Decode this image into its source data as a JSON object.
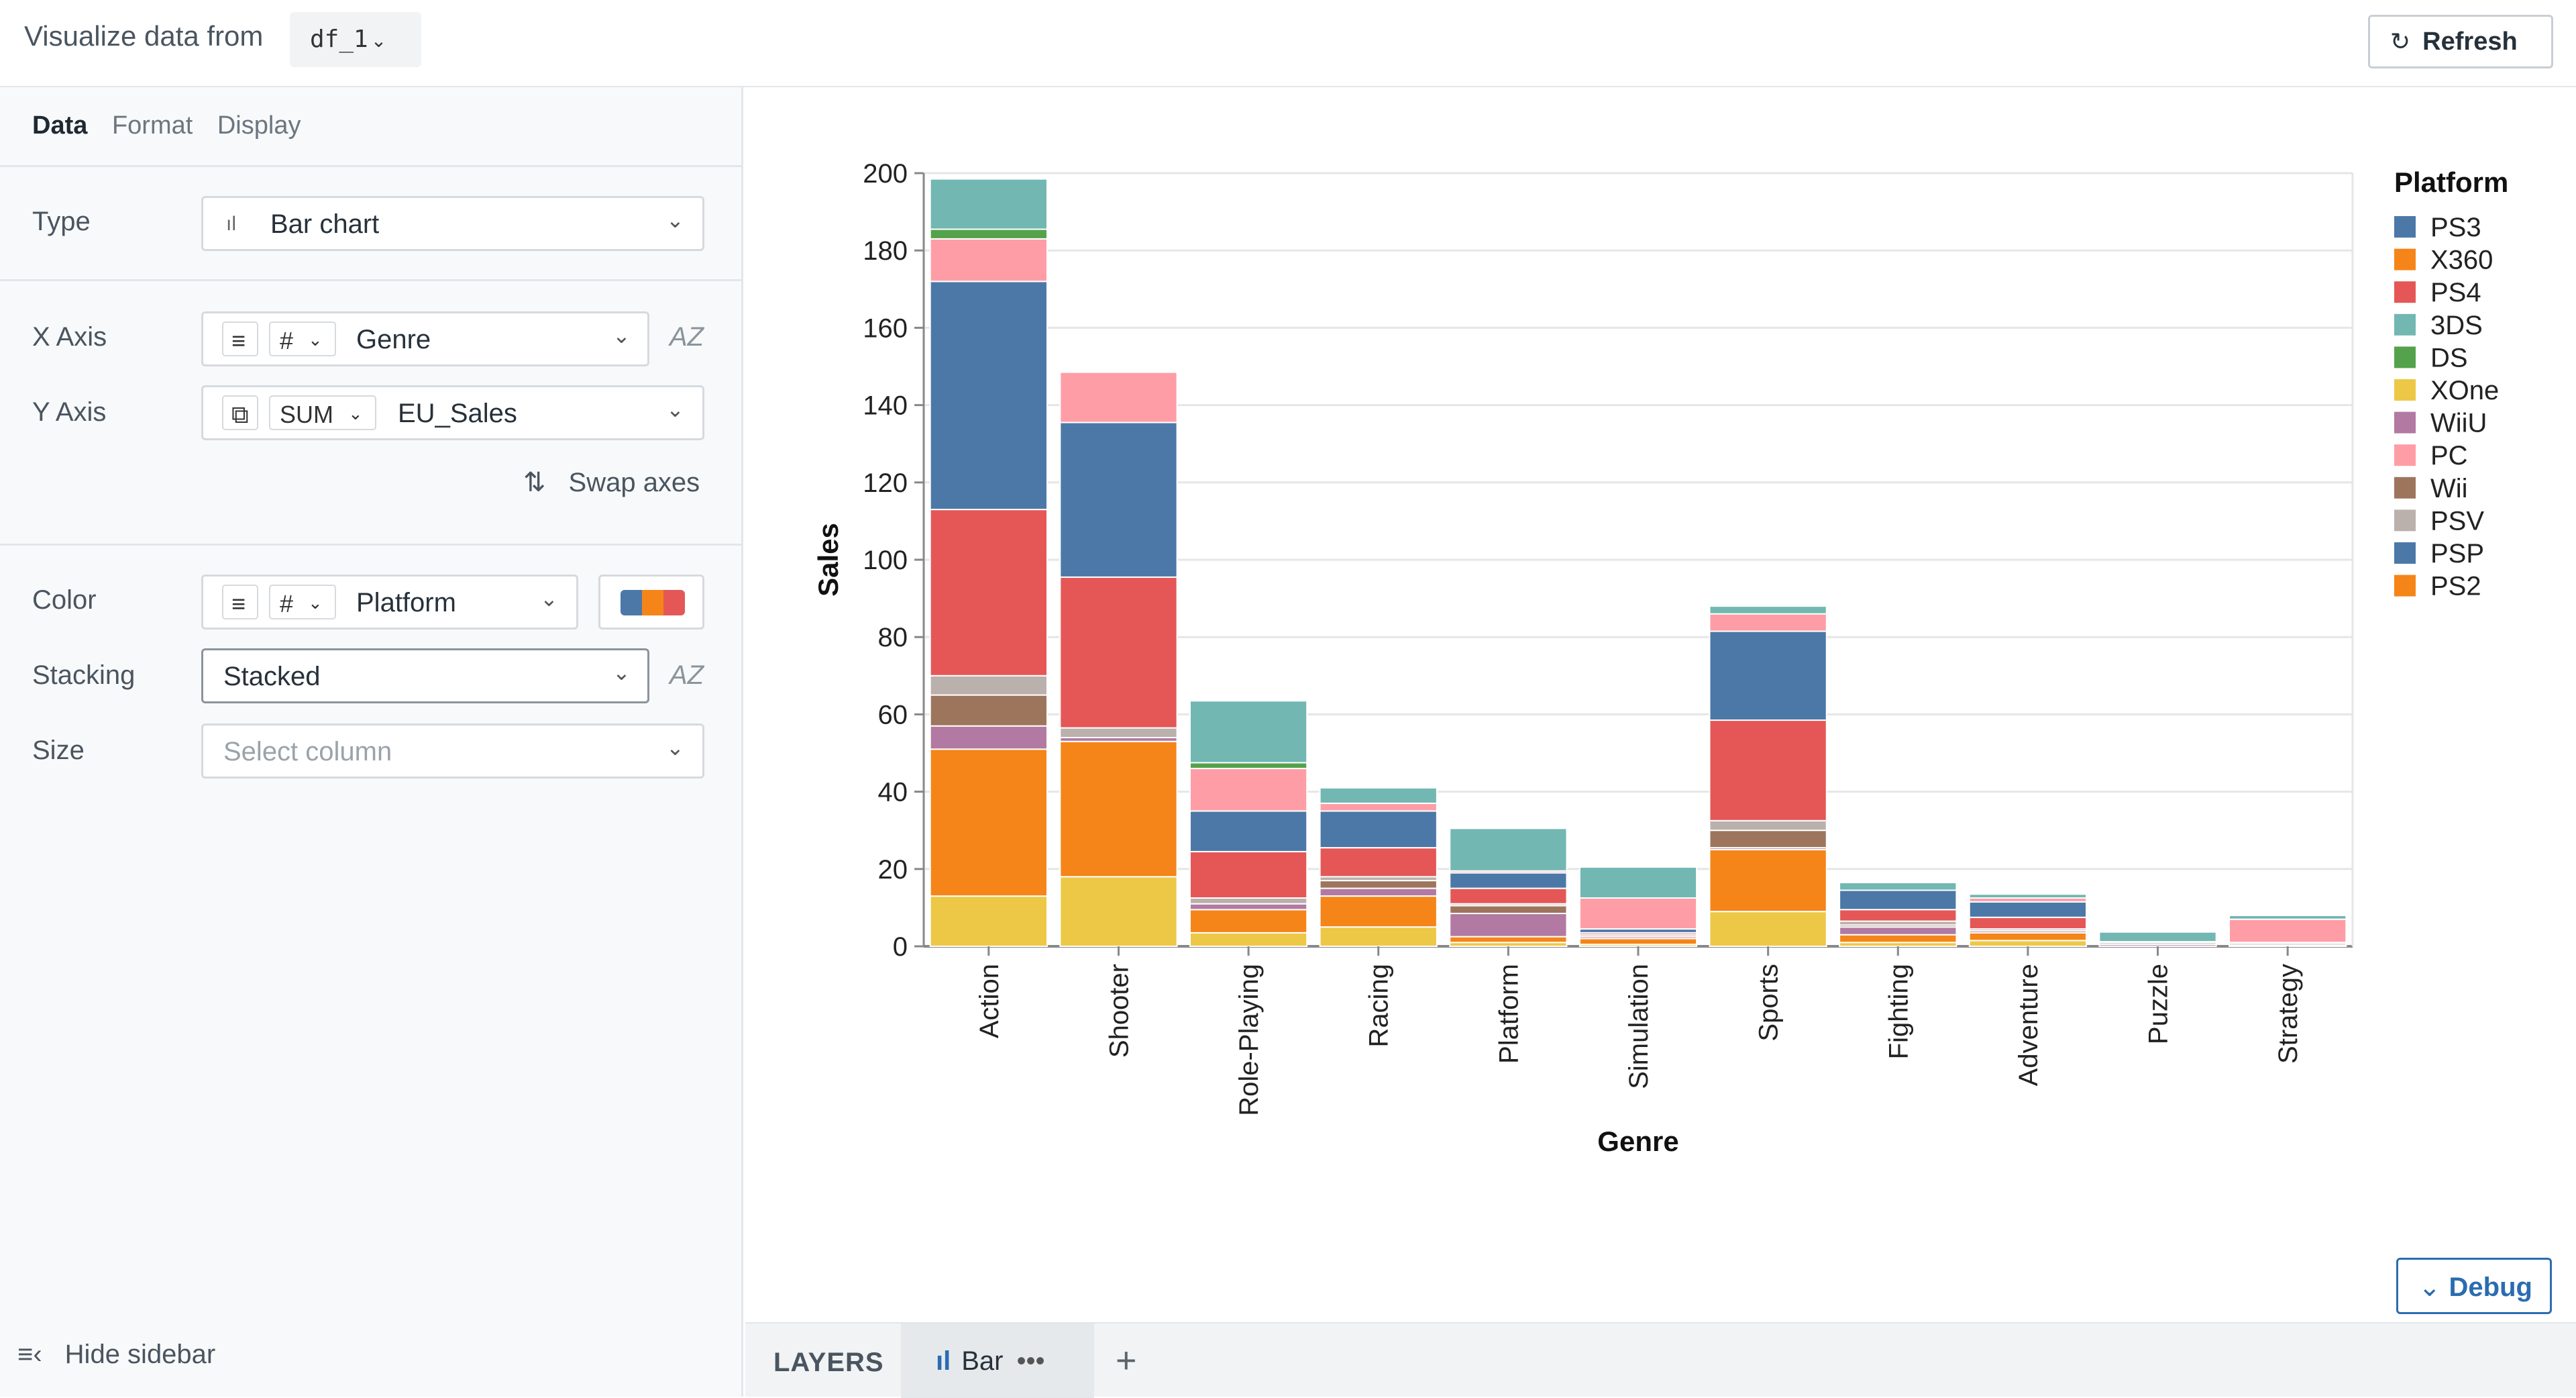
{
  "header": {
    "title": "Visualize data from",
    "dataframe": "df_1",
    "refresh_label": "Refresh"
  },
  "sidebar": {
    "tabs": [
      "Data",
      "Format",
      "Display"
    ],
    "type_label": "Type",
    "type_value": "Bar chart",
    "x_axis_label": "X Axis",
    "x_axis_kind": "#",
    "x_axis_value": "Genre",
    "y_axis_label": "Y Axis",
    "y_axis_agg": "SUM",
    "y_axis_value": "EU_Sales",
    "swap_label": "Swap axes",
    "color_label": "Color",
    "color_kind": "#",
    "color_value": "Platform",
    "stacking_label": "Stacking",
    "stacking_value": "Stacked",
    "size_label": "Size",
    "size_placeholder": "Select column",
    "hide_label": "Hide sidebar"
  },
  "debug_label": "Debug",
  "layers": {
    "label": "LAYERS",
    "tab_label": "Bar"
  },
  "chart_data": {
    "type": "bar",
    "stacked": true,
    "xlabel": "Genre",
    "ylabel": "Sales",
    "ylim": [
      0,
      200
    ],
    "yticks": [
      0,
      20,
      40,
      60,
      80,
      100,
      120,
      140,
      160,
      180,
      200
    ],
    "legend_title": "Platform",
    "legend_position": "right",
    "grid": true,
    "categories": [
      "Action",
      "Shooter",
      "Role-Playing",
      "Racing",
      "Platform",
      "Simulation",
      "Sports",
      "Fighting",
      "Adventure",
      "Puzzle",
      "Strategy"
    ],
    "series": [
      {
        "name": "XOne",
        "color": "#ECC846",
        "values": [
          13,
          18,
          3.5,
          5,
          1,
          0.5,
          9,
          1,
          1.5,
          0,
          0
        ]
      },
      {
        "name": "X360",
        "color": "#F58518",
        "values": [
          38,
          35,
          6,
          8,
          1.5,
          1.5,
          16,
          2,
          2,
          0,
          0
        ]
      },
      {
        "name": "WiiU",
        "color": "#B279A2",
        "values": [
          6,
          1,
          1.5,
          2,
          6,
          0.5,
          0.5,
          2,
          0.5,
          0.5,
          0.3
        ]
      },
      {
        "name": "Wii",
        "color": "#9D755D",
        "values": [
          8,
          0,
          0,
          2,
          2,
          0,
          4.5,
          0.5,
          0,
          0,
          0
        ]
      },
      {
        "name": "PSV",
        "color": "#BAB0AC",
        "values": [
          5,
          2.5,
          1.5,
          1,
          0.5,
          0.5,
          2.5,
          1,
          0.5,
          0.5,
          0.5
        ]
      },
      {
        "name": "PS4",
        "color": "#E45756",
        "values": [
          43,
          39,
          12,
          7.5,
          4,
          0.5,
          26,
          3,
          3,
          0.2,
          0.2
        ]
      },
      {
        "name": "PS3",
        "color": "#4C78A8",
        "values": [
          59,
          40,
          10.5,
          9.5,
          4,
          1,
          23,
          5,
          4,
          0,
          0
        ]
      },
      {
        "name": "PC",
        "color": "#FF9DA6",
        "values": [
          11,
          13,
          11,
          2,
          0.5,
          8,
          4.5,
          0,
          1,
          0,
          6
        ]
      },
      {
        "name": "DS",
        "color": "#54A24B",
        "values": [
          2.5,
          0,
          1.5,
          0,
          0,
          0,
          0,
          0,
          0,
          0,
          0
        ]
      },
      {
        "name": "3DS",
        "color": "#72B7B2",
        "values": [
          13,
          0,
          16,
          4,
          11,
          8,
          2,
          2,
          1,
          2.5,
          1
        ]
      }
    ],
    "legend": [
      {
        "name": "PS3",
        "color": "#4C78A8"
      },
      {
        "name": "X360",
        "color": "#F58518"
      },
      {
        "name": "PS4",
        "color": "#E45756"
      },
      {
        "name": "3DS",
        "color": "#72B7B2"
      },
      {
        "name": "DS",
        "color": "#54A24B"
      },
      {
        "name": "XOne",
        "color": "#ECC846"
      },
      {
        "name": "WiiU",
        "color": "#B279A2"
      },
      {
        "name": "PC",
        "color": "#FF9DA6"
      },
      {
        "name": "Wii",
        "color": "#9D755D"
      },
      {
        "name": "PSV",
        "color": "#BAB0AC"
      },
      {
        "name": "PSP",
        "color": "#4C78A8"
      },
      {
        "name": "PS2",
        "color": "#F58518"
      }
    ]
  }
}
